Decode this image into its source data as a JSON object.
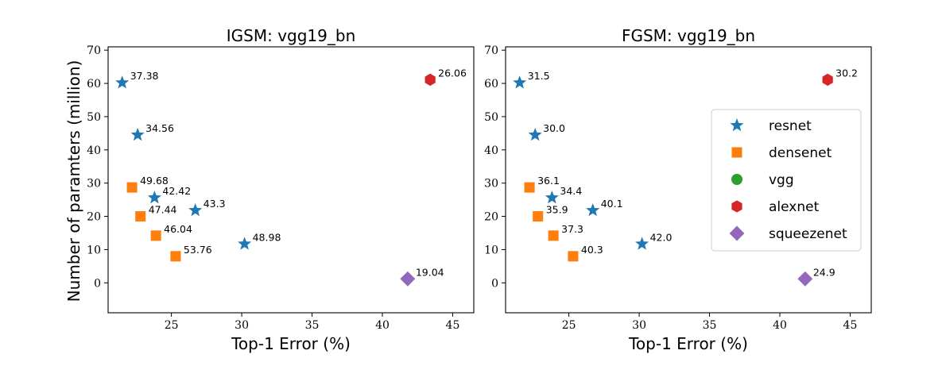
{
  "colors": {
    "resnet": "#1f77b4",
    "densenet": "#ff7f0e",
    "vgg": "#2ca02c",
    "alexnet": "#d62728",
    "squeezenet": "#9467bd"
  },
  "chart_data": [
    {
      "type": "scatter",
      "title": "IGSM: vgg19_bn",
      "xlabel": "Top-1 Error (%)",
      "ylabel": "Number of paramters (million)",
      "xlim": [
        20.5,
        46.5
      ],
      "ylim": [
        -9,
        71
      ],
      "xticks": [
        25,
        30,
        35,
        40,
        45
      ],
      "yticks": [
        0,
        10,
        20,
        30,
        40,
        50,
        60,
        70
      ],
      "series": [
        {
          "name": "resnet",
          "marker": "star",
          "points": [
            {
              "x": 21.5,
              "y": 60.2,
              "label": "37.38"
            },
            {
              "x": 22.6,
              "y": 44.5,
              "label": "34.56"
            },
            {
              "x": 23.8,
              "y": 25.6,
              "label": "42.42"
            },
            {
              "x": 26.7,
              "y": 21.8,
              "label": "43.3"
            },
            {
              "x": 30.2,
              "y": 11.7,
              "label": "48.98"
            }
          ]
        },
        {
          "name": "densenet",
          "marker": "square",
          "points": [
            {
              "x": 22.2,
              "y": 28.7,
              "label": "49.68"
            },
            {
              "x": 22.8,
              "y": 20.0,
              "label": "47.44"
            },
            {
              "x": 23.9,
              "y": 14.2,
              "label": "46.04"
            },
            {
              "x": 25.3,
              "y": 8.0,
              "label": "53.76"
            }
          ]
        },
        {
          "name": "vgg",
          "marker": "circle",
          "points": []
        },
        {
          "name": "alexnet",
          "marker": "hexagon",
          "points": [
            {
              "x": 43.4,
              "y": 61.1,
              "label": "26.06"
            }
          ]
        },
        {
          "name": "squeezenet",
          "marker": "diamond",
          "points": [
            {
              "x": 41.8,
              "y": 1.2,
              "label": "19.04"
            }
          ]
        }
      ]
    },
    {
      "type": "scatter",
      "title": "FGSM: vgg19_bn",
      "xlabel": "Top-1 Error (%)",
      "ylabel": "",
      "xlim": [
        20.5,
        46.5
      ],
      "ylim": [
        -9,
        71
      ],
      "xticks": [
        25,
        30,
        35,
        40,
        45
      ],
      "yticks": [
        0,
        10,
        20,
        30,
        40,
        50,
        60,
        70
      ],
      "legend": {
        "placement": "right",
        "entries": [
          "resnet",
          "densenet",
          "vgg",
          "alexnet",
          "squeezenet"
        ]
      },
      "series": [
        {
          "name": "resnet",
          "marker": "star",
          "points": [
            {
              "x": 21.5,
              "y": 60.2,
              "label": "31.5"
            },
            {
              "x": 22.6,
              "y": 44.5,
              "label": "30.0"
            },
            {
              "x": 23.8,
              "y": 25.6,
              "label": "34.4"
            },
            {
              "x": 26.7,
              "y": 21.8,
              "label": "40.1"
            },
            {
              "x": 30.2,
              "y": 11.7,
              "label": "42.0"
            }
          ]
        },
        {
          "name": "densenet",
          "marker": "square",
          "points": [
            {
              "x": 22.2,
              "y": 28.7,
              "label": "36.1"
            },
            {
              "x": 22.8,
              "y": 20.0,
              "label": "35.9"
            },
            {
              "x": 23.9,
              "y": 14.2,
              "label": "37.3"
            },
            {
              "x": 25.3,
              "y": 8.0,
              "label": "40.3"
            }
          ]
        },
        {
          "name": "vgg",
          "marker": "circle",
          "points": []
        },
        {
          "name": "alexnet",
          "marker": "hexagon",
          "points": [
            {
              "x": 43.4,
              "y": 61.1,
              "label": "30.2"
            }
          ]
        },
        {
          "name": "squeezenet",
          "marker": "diamond",
          "points": [
            {
              "x": 41.8,
              "y": 1.2,
              "label": "24.9"
            }
          ]
        }
      ]
    }
  ]
}
